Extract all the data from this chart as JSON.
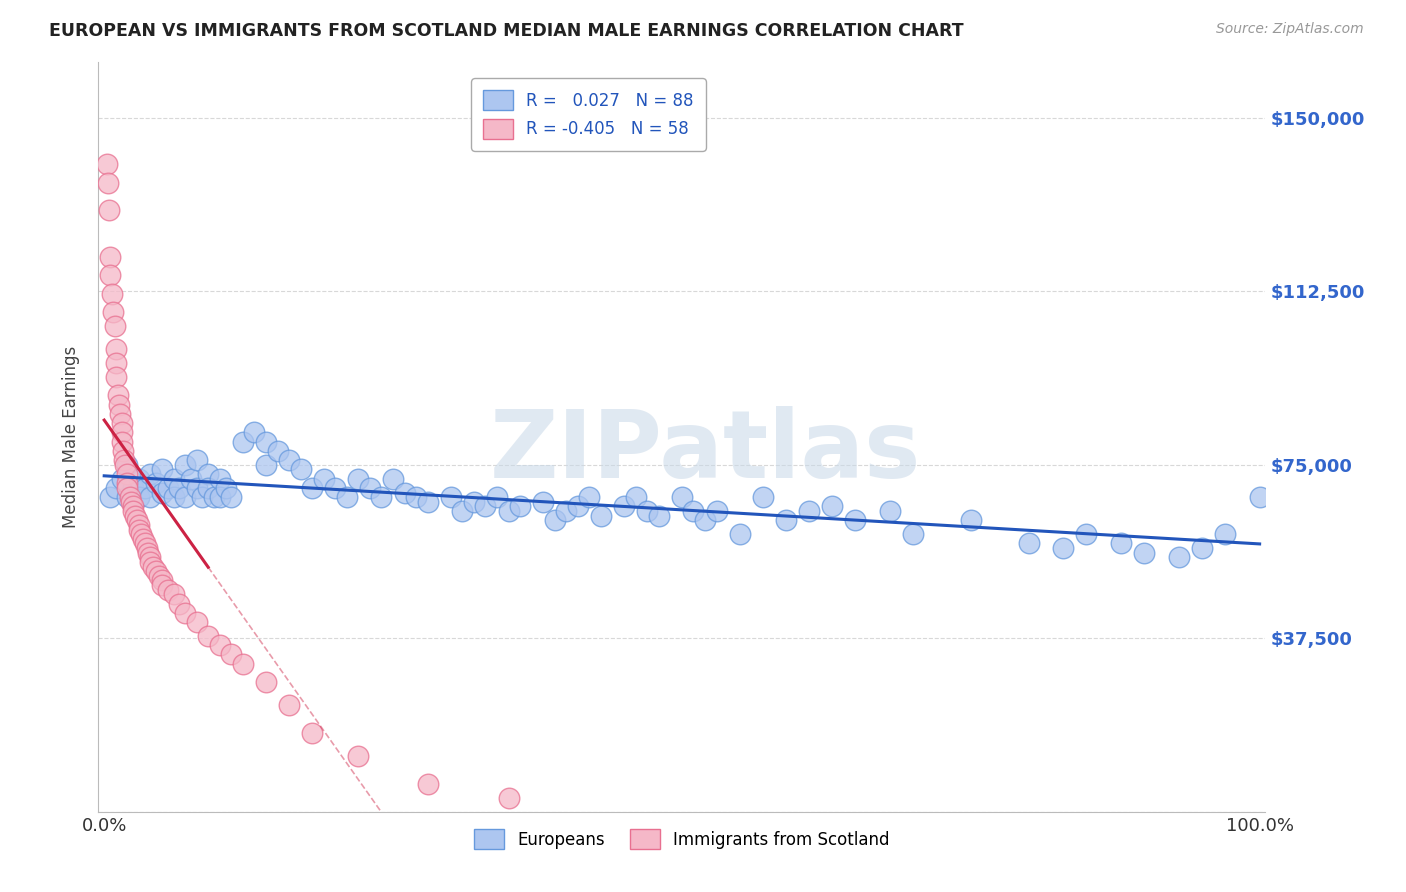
{
  "title": "EUROPEAN VS IMMIGRANTS FROM SCOTLAND MEDIAN MALE EARNINGS CORRELATION CHART",
  "source": "Source: ZipAtlas.com",
  "ylabel": "Median Male Earnings",
  "background_color": "#ffffff",
  "plot_bg_color": "#ffffff",
  "grid_color": "#d8d8d8",
  "blue_scatter_face": "#adc6f0",
  "blue_scatter_edge": "#6699dd",
  "pink_scatter_face": "#f5b8c8",
  "pink_scatter_edge": "#e87090",
  "trend_blue_color": "#2255bb",
  "trend_pink_color": "#cc2244",
  "R_blue": 0.027,
  "N_blue": 88,
  "R_pink": -0.405,
  "N_pink": 58,
  "ylim": [
    0,
    162000
  ],
  "xlim": [
    -0.005,
    1.005
  ],
  "blue_x": [
    0.005,
    0.01,
    0.015,
    0.02,
    0.02,
    0.025,
    0.03,
    0.03,
    0.035,
    0.04,
    0.04,
    0.045,
    0.05,
    0.05,
    0.055,
    0.06,
    0.06,
    0.065,
    0.07,
    0.07,
    0.075,
    0.08,
    0.08,
    0.085,
    0.09,
    0.09,
    0.095,
    0.1,
    0.1,
    0.105,
    0.11,
    0.12,
    0.13,
    0.14,
    0.14,
    0.15,
    0.16,
    0.17,
    0.18,
    0.19,
    0.2,
    0.21,
    0.22,
    0.23,
    0.24,
    0.25,
    0.26,
    0.27,
    0.28,
    0.3,
    0.31,
    0.32,
    0.33,
    0.34,
    0.35,
    0.36,
    0.38,
    0.39,
    0.4,
    0.41,
    0.42,
    0.43,
    0.45,
    0.46,
    0.47,
    0.48,
    0.5,
    0.51,
    0.52,
    0.53,
    0.55,
    0.57,
    0.59,
    0.61,
    0.63,
    0.65,
    0.68,
    0.7,
    0.75,
    0.8,
    0.83,
    0.85,
    0.88,
    0.9,
    0.93,
    0.95,
    0.97,
    1.0
  ],
  "blue_y": [
    68000,
    70000,
    72000,
    68000,
    75000,
    70000,
    72000,
    68000,
    70000,
    73000,
    68000,
    71000,
    74000,
    69000,
    70000,
    72000,
    68000,
    70000,
    75000,
    68000,
    72000,
    76000,
    70000,
    68000,
    73000,
    70000,
    68000,
    72000,
    68000,
    70000,
    68000,
    80000,
    82000,
    80000,
    75000,
    78000,
    76000,
    74000,
    70000,
    72000,
    70000,
    68000,
    72000,
    70000,
    68000,
    72000,
    69000,
    68000,
    67000,
    68000,
    65000,
    67000,
    66000,
    68000,
    65000,
    66000,
    67000,
    63000,
    65000,
    66000,
    68000,
    64000,
    66000,
    68000,
    65000,
    64000,
    68000,
    65000,
    63000,
    65000,
    60000,
    68000,
    63000,
    65000,
    66000,
    63000,
    65000,
    60000,
    63000,
    58000,
    57000,
    60000,
    58000,
    56000,
    55000,
    57000,
    60000,
    68000
  ],
  "pink_x": [
    0.002,
    0.003,
    0.004,
    0.005,
    0.005,
    0.007,
    0.008,
    0.009,
    0.01,
    0.01,
    0.01,
    0.012,
    0.013,
    0.014,
    0.015,
    0.015,
    0.015,
    0.016,
    0.017,
    0.018,
    0.02,
    0.02,
    0.02,
    0.022,
    0.023,
    0.025,
    0.025,
    0.027,
    0.028,
    0.03,
    0.03,
    0.032,
    0.034,
    0.035,
    0.037,
    0.038,
    0.04,
    0.04,
    0.042,
    0.045,
    0.047,
    0.05,
    0.05,
    0.055,
    0.06,
    0.065,
    0.07,
    0.08,
    0.09,
    0.1,
    0.11,
    0.12,
    0.14,
    0.16,
    0.18,
    0.22,
    0.28,
    0.35
  ],
  "pink_y": [
    140000,
    136000,
    130000,
    120000,
    116000,
    112000,
    108000,
    105000,
    100000,
    97000,
    94000,
    90000,
    88000,
    86000,
    84000,
    82000,
    80000,
    78000,
    76000,
    75000,
    73000,
    71000,
    70000,
    68000,
    67000,
    66000,
    65000,
    64000,
    63000,
    62000,
    61000,
    60000,
    59000,
    58000,
    57000,
    56000,
    55000,
    54000,
    53000,
    52000,
    51000,
    50000,
    49000,
    48000,
    47000,
    45000,
    43000,
    41000,
    38000,
    36000,
    34000,
    32000,
    28000,
    23000,
    17000,
    12000,
    6000,
    3000
  ],
  "watermark_text": "ZIPatlas",
  "watermark_color": "#c8d8e8",
  "watermark_alpha": 0.55
}
